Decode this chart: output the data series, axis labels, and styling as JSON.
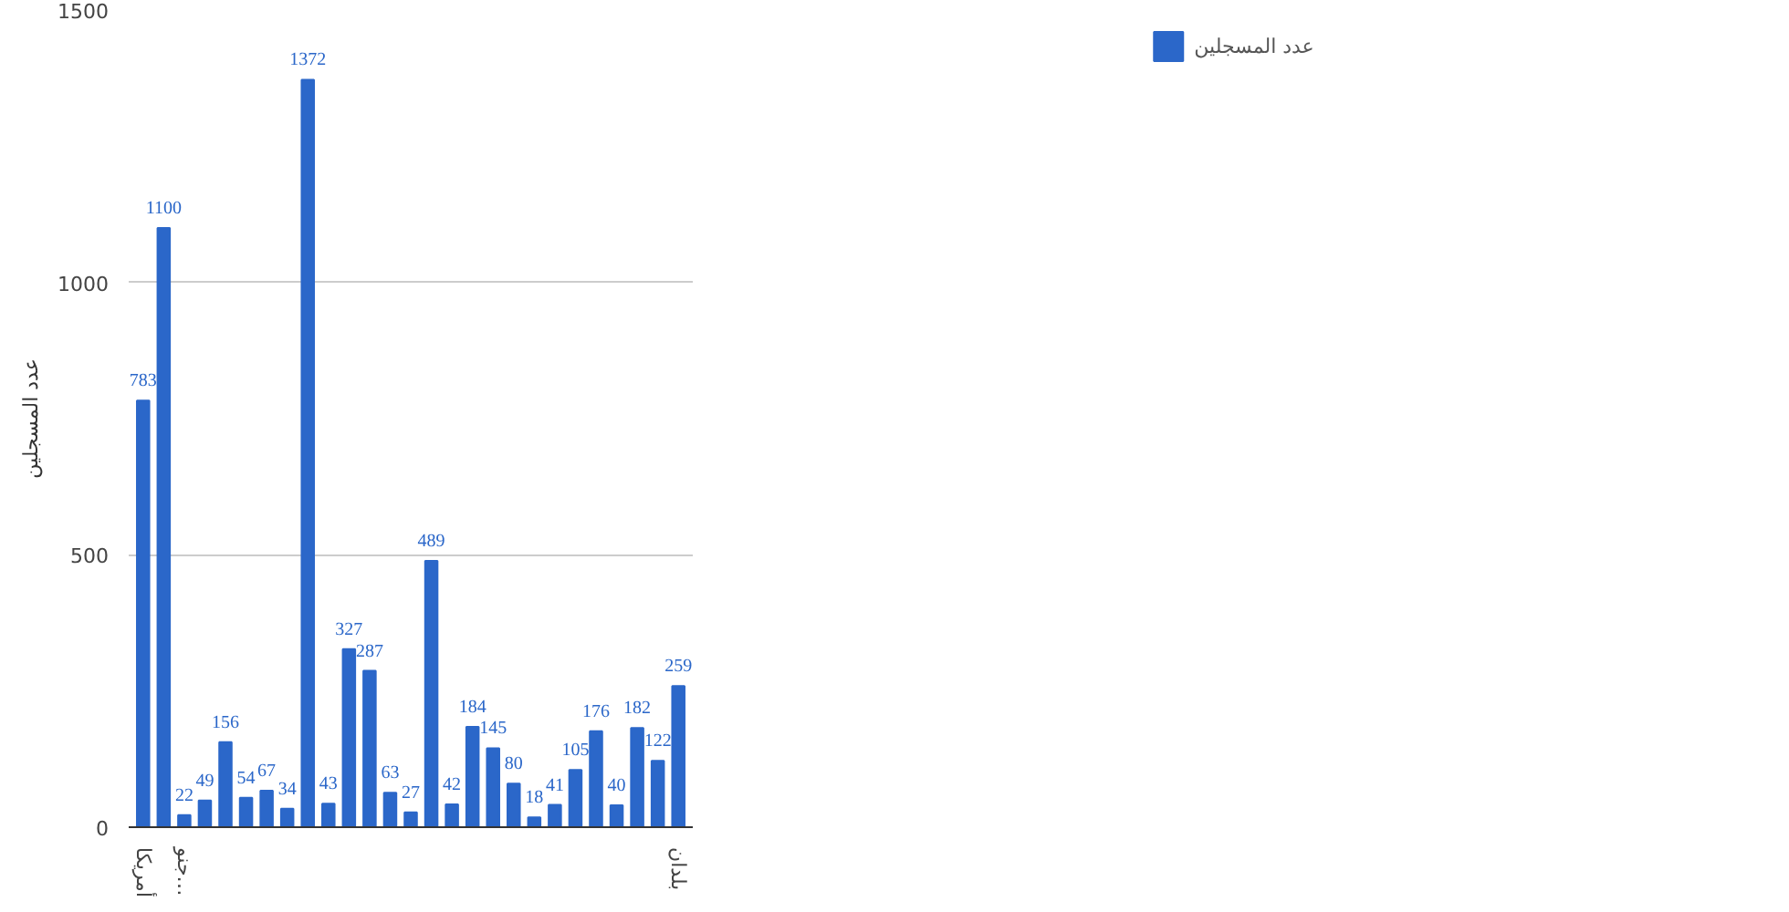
{
  "chart_data": {
    "type": "bar",
    "ylabel": "عدد المسجلين",
    "categories": [
      "أمريكا",
      null,
      "جنو…",
      null,
      null,
      null,
      null,
      null,
      null,
      null,
      null,
      null,
      null,
      null,
      null,
      null,
      null,
      null,
      null,
      null,
      null,
      null,
      null,
      null,
      null,
      null,
      "بلدان"
    ],
    "series": [
      {
        "name": "عدد المسجلين",
        "color": "#2b67c9",
        "values": [
          783,
          1100,
          22,
          49,
          156,
          54,
          67,
          34,
          1372,
          43,
          327,
          287,
          63,
          27,
          489,
          42,
          184,
          145,
          80,
          18,
          41,
          105,
          176,
          40,
          182,
          122,
          259
        ]
      }
    ],
    "ylim": [
      0,
      1500
    ],
    "yticks": [
      0,
      500,
      1000,
      1500
    ],
    "grid": "y",
    "legend": "top right",
    "data_labels": true
  }
}
